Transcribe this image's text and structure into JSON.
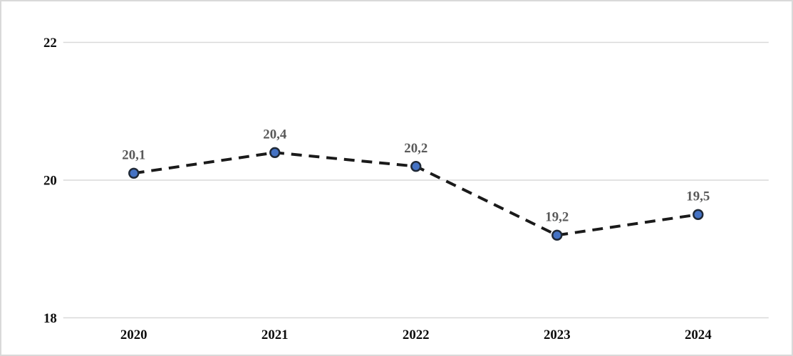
{
  "chart_data": {
    "type": "line",
    "title": "",
    "xlabel": "",
    "ylabel": "",
    "categories": [
      "2020",
      "2021",
      "2022",
      "2023",
      "2024"
    ],
    "series": [
      {
        "name": "series-1",
        "values": [
          20.1,
          20.4,
          20.2,
          19.2,
          19.5
        ]
      }
    ],
    "data_labels": [
      "20,1",
      "20,4",
      "20,2",
      "19,2",
      "19,5"
    ],
    "yticks": [
      18,
      20,
      22
    ],
    "ytick_labels": [
      "18",
      "20",
      "22"
    ],
    "ylim": [
      18,
      22
    ],
    "grid": true,
    "legend": "none",
    "line_style": "dashed",
    "colors": {
      "line": "#1a1a1a",
      "marker_fill": "#4472C4",
      "marker_border": "#1f2937",
      "data_label": "#595959",
      "axis_label": "#0d0d0d",
      "gridline": "#D9D9D9",
      "frame_border": "#D9D9D9",
      "background": "#FFFFFF"
    }
  }
}
